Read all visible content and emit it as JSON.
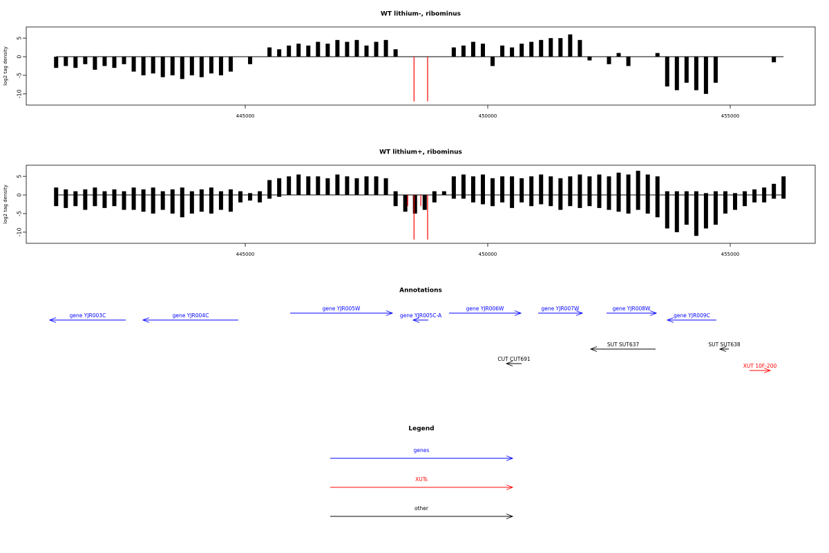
{
  "chart_data": [
    {
      "type": "bar",
      "title": "WT lithium-, ribominus",
      "ylabel": "log2 tag density",
      "xlim": [
        440484,
        456752
      ],
      "ylim": [
        -13,
        8
      ],
      "xticks": [
        445000,
        450000,
        455000
      ],
      "yticks": [
        -10,
        -5,
        0,
        5
      ],
      "series": [
        {
          "color": "#000000",
          "x": [
            441100,
            441300,
            441500,
            441700,
            441900,
            442100,
            442300,
            442500,
            442700,
            442900,
            443100,
            443300,
            443500,
            443700,
            443900,
            444100,
            444300,
            444500,
            444700,
            444900,
            445100,
            445300,
            445500,
            445700,
            445900,
            446100,
            446300,
            446500,
            446700,
            446900,
            447100,
            447300,
            447500,
            447700,
            447900,
            448100,
            448300,
            448500,
            448700,
            448900,
            449100,
            449300,
            449500,
            449700,
            449900,
            450100,
            450300,
            450500,
            450700,
            450900,
            451100,
            451300,
            451500,
            451700,
            451900,
            452100,
            452300,
            452500,
            452700,
            452900,
            453100,
            453300,
            453500,
            453700,
            453900,
            454100,
            454300,
            454500,
            454700,
            454900,
            455100,
            455300,
            455500,
            455700,
            455900,
            456100
          ],
          "values": [
            -3,
            -2.5,
            -3,
            -2,
            -3.5,
            -2.5,
            -3,
            -2,
            -4,
            -5,
            -4.5,
            -5.5,
            -5,
            -6,
            -5,
            -5.5,
            -4.5,
            -5,
            -4,
            0,
            -2,
            0,
            2.5,
            2,
            3,
            3.5,
            3,
            4,
            3.5,
            4.5,
            4,
            4.5,
            3,
            4,
            4.5,
            2,
            0,
            0,
            0,
            0,
            0,
            2.5,
            3,
            4,
            3.5,
            -2.5,
            3,
            2.5,
            3.5,
            4,
            4.5,
            5,
            5,
            6,
            4.5,
            -1,
            0,
            -2,
            1,
            -2.5,
            0,
            0,
            1,
            -8,
            -9,
            -7,
            -9,
            -10,
            -7,
            0,
            0,
            0,
            0,
            0,
            -1.5,
            0
          ]
        },
        {
          "color": "#ff0000",
          "x": [
            448480,
            448760
          ],
          "values": [
            -12,
            -12
          ]
        }
      ]
    },
    {
      "type": "bar",
      "title": "WT lithium+, ribominus",
      "ylabel": "log2 tag density",
      "xlim": [
        440484,
        456752
      ],
      "ylim": [
        -13,
        8
      ],
      "xticks": [
        445000,
        450000,
        455000
      ],
      "yticks": [
        -10,
        -5,
        0,
        5
      ],
      "series": [
        {
          "color": "#000000",
          "x": [
            441100,
            441300,
            441500,
            441700,
            441900,
            442100,
            442300,
            442500,
            442700,
            442900,
            443100,
            443300,
            443500,
            443700,
            443900,
            444100,
            444300,
            444500,
            444700,
            444900,
            445100,
            445300,
            445500,
            445700,
            445900,
            446100,
            446300,
            446500,
            446700,
            446900,
            447100,
            447300,
            447500,
            447700,
            447900,
            448100,
            448300,
            448500,
            448700,
            448900,
            449100,
            449300,
            449500,
            449700,
            449900,
            450100,
            450300,
            450500,
            450700,
            450900,
            451100,
            451300,
            451500,
            451700,
            451900,
            452100,
            452300,
            452500,
            452700,
            452900,
            453100,
            453300,
            453500,
            453700,
            453900,
            454100,
            454300,
            454500,
            454700,
            454900,
            455100,
            455300,
            455500,
            455700,
            455900,
            456100
          ],
          "values": [
            2,
            1.5,
            1,
            1.5,
            2,
            1,
            1.5,
            1,
            2,
            1.5,
            2,
            1,
            1.5,
            2,
            1,
            1.5,
            2,
            1,
            1.5,
            1,
            0.5,
            1,
            4,
            4.5,
            5,
            5.5,
            5,
            5,
            4.5,
            5.5,
            5,
            4.5,
            5,
            5,
            4.5,
            1,
            0,
            0,
            0,
            1,
            1,
            5,
            5.5,
            5,
            5.5,
            4.5,
            5,
            5,
            4.5,
            5,
            5.5,
            5,
            4.5,
            5,
            5.5,
            5,
            5.5,
            5,
            6,
            5.5,
            6.5,
            5.5,
            5,
            1,
            1,
            1,
            1,
            0.5,
            1,
            1,
            0.5,
            1,
            1.5,
            2,
            3,
            5
          ]
        },
        {
          "color": "#000000",
          "x": [
            441100,
            441300,
            441500,
            441700,
            441900,
            442100,
            442300,
            442500,
            442700,
            442900,
            443100,
            443300,
            443500,
            443700,
            443900,
            444100,
            444300,
            444500,
            444700,
            444900,
            445100,
            445300,
            445500,
            445700,
            445900,
            446100,
            446300,
            446500,
            446700,
            446900,
            447100,
            447300,
            447500,
            447700,
            447900,
            448100,
            448300,
            448500,
            448700,
            448900,
            449100,
            449300,
            449500,
            449700,
            449900,
            450100,
            450300,
            450500,
            450700,
            450900,
            451100,
            451300,
            451500,
            451700,
            451900,
            452100,
            452300,
            452500,
            452700,
            452900,
            453100,
            453300,
            453500,
            453700,
            453900,
            454100,
            454300,
            454500,
            454700,
            454900,
            455100,
            455300,
            455500,
            455700,
            455900,
            456100
          ],
          "values": [
            -3,
            -3.5,
            -3,
            -4,
            -3,
            -3.5,
            -3,
            -4,
            -4,
            -4.5,
            -5,
            -4,
            -5,
            -6,
            -5,
            -4.5,
            -5,
            -4,
            -4.5,
            -2,
            -1.5,
            -2,
            -1,
            -0.5,
            0,
            0,
            0,
            0,
            0,
            0,
            0,
            0,
            0,
            0,
            0,
            -3,
            -4.5,
            -5,
            -4,
            -2,
            0,
            -1,
            -1,
            -2,
            -2.5,
            -3,
            -2,
            -3.5,
            -2,
            -3,
            -2.5,
            -3,
            -4,
            -3,
            -3.5,
            -3,
            -3.5,
            -4,
            -4.5,
            -5,
            -4,
            -5,
            -6,
            -9,
            -10,
            -8,
            -11,
            -9,
            -8,
            -5,
            -4,
            -3,
            -2,
            -2,
            -1,
            -1
          ]
        },
        {
          "color": "#ff0000",
          "x": [
            448350,
            448480,
            448620,
            448760
          ],
          "values": [
            -3,
            -12,
            -3,
            -12
          ]
        }
      ]
    }
  ],
  "annotations": {
    "title": "Annotations",
    "items": [
      {
        "label": "gene YJR003C",
        "start": 442535,
        "end": 440968,
        "color": "#0000ff"
      },
      {
        "label": "gene YJR004C",
        "start": 444857,
        "end": 442891,
        "color": "#0000ff"
      },
      {
        "label": "gene YJR005W",
        "start": 445926,
        "end": 448034,
        "color": "#0000ff"
      },
      {
        "label": "gene YJR005C-A",
        "start": 448775,
        "end": 448461,
        "color": "#0000ff"
      },
      {
        "label": "gene YJR006W",
        "start": 449202,
        "end": 450684,
        "color": "#0000ff"
      },
      {
        "label": "gene YJR007W",
        "start": 451040,
        "end": 451951,
        "color": "#0000ff"
      },
      {
        "label": "gene YJR008W",
        "start": 452450,
        "end": 453476,
        "color": "#0000ff"
      },
      {
        "label": "gene YJR009C",
        "start": 454715,
        "end": 453704,
        "color": "#0000ff"
      },
      {
        "label": "SUT SUT637",
        "start": 453461,
        "end": 452123,
        "color": "#000000"
      },
      {
        "label": "SUT SUT638",
        "start": 454972,
        "end": 454786,
        "color": "#000000"
      },
      {
        "label": "CUT CUT691",
        "start": 450698,
        "end": 450385,
        "color": "#000000"
      },
      {
        "label": "XUT 10F-200",
        "start": 455399,
        "end": 455826,
        "color": "#ff0000"
      }
    ]
  },
  "legend": {
    "title": "Legend",
    "items": [
      {
        "label": "genes",
        "color": "#0000ff"
      },
      {
        "label": "XUTs",
        "color": "#ff0000"
      },
      {
        "label": "other",
        "color": "#000000"
      }
    ]
  }
}
